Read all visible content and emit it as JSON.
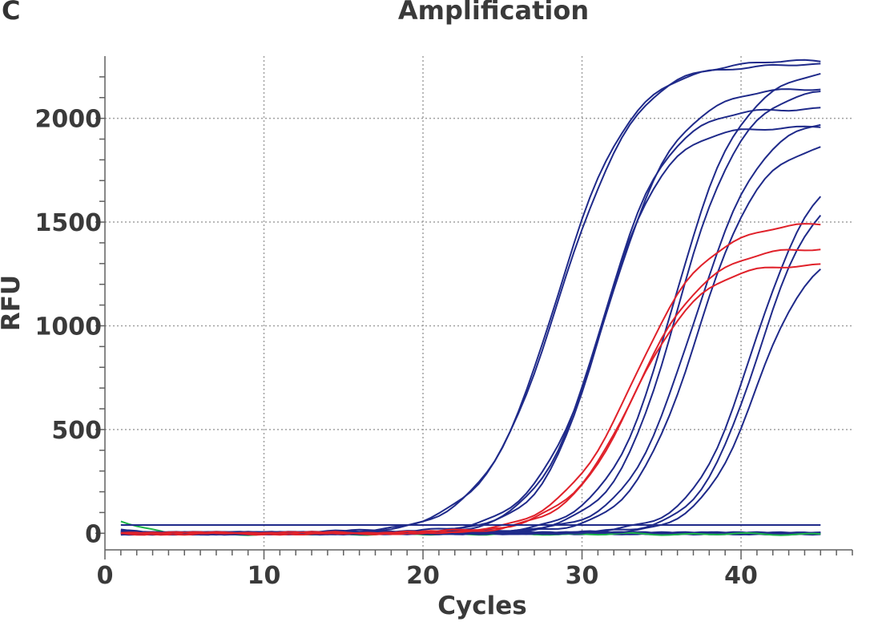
{
  "panel_label": "C",
  "chart_data": {
    "type": "line",
    "title": "Amplification",
    "xlabel": "Cycles",
    "ylabel": "RFU",
    "xlim": [
      0,
      47
    ],
    "ylim": [
      -80,
      2300
    ],
    "xticks": [
      0,
      10,
      20,
      30,
      40
    ],
    "yticks": [
      0,
      500,
      1000,
      1500,
      2000
    ],
    "grid": true,
    "threshold": 40,
    "colors": {
      "sample": "#1f2a8a",
      "highlight": "#e0212a",
      "control": "#1db34a",
      "grid": "#a0a0a0"
    },
    "curves": [
      {
        "group": "sample",
        "plateau": 2260,
        "midpoint": 28.4,
        "slope": 2.3
      },
      {
        "group": "sample",
        "plateau": 2280,
        "midpoint": 28.6,
        "slope": 2.4
      },
      {
        "group": "sample",
        "plateau": 2150,
        "midpoint": 31.6,
        "slope": 2.2
      },
      {
        "group": "sample",
        "plateau": 2050,
        "midpoint": 31.3,
        "slope": 2.0
      },
      {
        "group": "sample",
        "plateau": 1960,
        "midpoint": 31.2,
        "slope": 1.9
      },
      {
        "group": "sample",
        "plateau": 2240,
        "midpoint": 35.8,
        "slope": 2.1
      },
      {
        "group": "sample",
        "plateau": 2150,
        "midpoint": 36.0,
        "slope": 2.0
      },
      {
        "group": "sample",
        "plateau": 2020,
        "midpoint": 37.0,
        "slope": 2.1
      },
      {
        "group": "sample",
        "plateau": 1900,
        "midpoint": 37.2,
        "slope": 2.0
      },
      {
        "group": "sample",
        "plateau": 1800,
        "midpoint": 40.8,
        "slope": 1.9
      },
      {
        "group": "sample",
        "plateau": 1700,
        "midpoint": 41.0,
        "slope": 1.8
      },
      {
        "group": "sample",
        "plateau": 1380,
        "midpoint": 40.9,
        "slope": 1.7
      },
      {
        "group": "highlight",
        "plateau": 1500,
        "midpoint": 33.3,
        "slope": 2.3
      },
      {
        "group": "highlight",
        "plateau": 1380,
        "midpoint": 33.4,
        "slope": 2.2
      },
      {
        "group": "highlight",
        "plateau": 1300,
        "midpoint": 33.2,
        "slope": 2.1
      }
    ]
  }
}
